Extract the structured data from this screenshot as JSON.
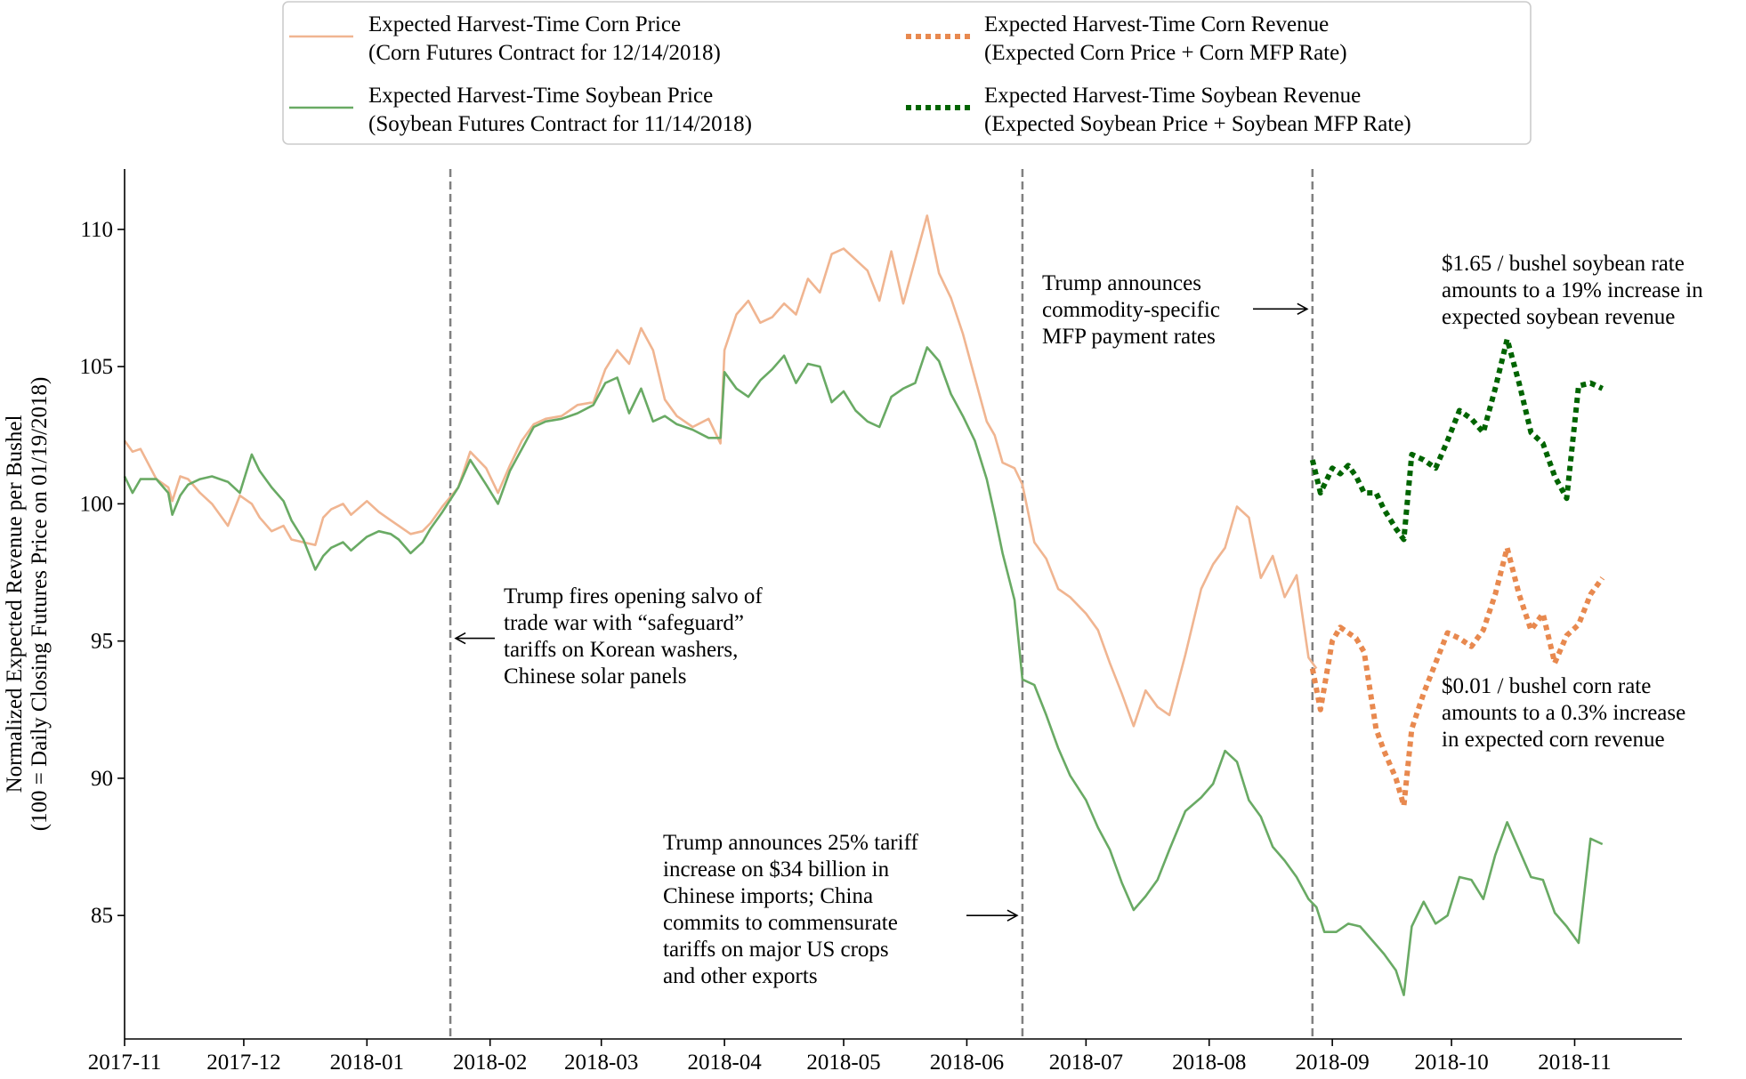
{
  "chart_data": {
    "type": "line",
    "ylabel": [
      "Normalized Expected Revenue per Bushel",
      "(100 = Daily Closing Futures Price on 01/19/2018)"
    ],
    "xlabel": "",
    "ylim": [
      80.5,
      112.2
    ],
    "xlim": [
      "2017-11-01",
      "2018-11-28"
    ],
    "grid": false,
    "legend_position": "top-center",
    "x_ticks": [
      "2017-11",
      "2017-12",
      "2018-01",
      "2018-02",
      "2018-03",
      "2018-04",
      "2018-05",
      "2018-06",
      "2018-07",
      "2018-08",
      "2018-09",
      "2018-10",
      "2018-11"
    ],
    "y_ticks": [
      85,
      90,
      95,
      100,
      105,
      110
    ],
    "legend": [
      [
        "Expected Harvest-Time Corn Price",
        "(Corn Futures Contract for 12/14/2018)"
      ],
      [
        "Expected Harvest-Time Soybean Price",
        "(Soybean Futures Contract for 11/14/2018)"
      ],
      [
        "Expected Harvest-Time Corn Revenue",
        "(Expected Corn Price + Corn MFP Rate)"
      ],
      [
        "Expected Harvest-Time Soybean Revenue",
        "(Expected Soybean Price + Soybean MFP Rate)"
      ]
    ],
    "vlines": [
      "2018-01-22",
      "2018-06-15",
      "2018-08-27"
    ],
    "annotations": [
      {
        "lines": [
          "Trump fires opening salvo of",
          "trade war with “safeguard”",
          "tariffs on Korean washers,",
          "Chinese solar panels"
        ],
        "arrow_to": "2018-01-22",
        "y": 95.1
      },
      {
        "lines": [
          "Trump announces 25% tariff",
          "increase on $34 billion in",
          "Chinese imports; China",
          "commits to commensurate",
          "tariffs on major US crops",
          "and other exports"
        ],
        "arrow_to": "2018-06-15",
        "y": 85.0
      },
      {
        "lines": [
          "Trump announces",
          "commodity-specific",
          "MFP payment rates"
        ],
        "arrow_to": "2018-08-27",
        "y": 107.1
      },
      {
        "lines": [
          "$1.65 / bushel soybean rate",
          "amounts to a 19% increase in",
          "expected soybean revenue"
        ]
      },
      {
        "lines": [
          "$0.01 / bushel corn rate",
          "amounts to a 0.3% increase",
          "in expected corn revenue"
        ]
      }
    ],
    "colors": {
      "corn_price": "#f0b591",
      "soy_price": "#69aa64",
      "corn_revenue": "#e8894f",
      "soy_revenue": "#006400",
      "vline": "#808080"
    },
    "series": [
      {
        "name": "Expected Harvest-Time Corn Price",
        "style": "solid",
        "color": "#f0b591",
        "x": [
          "2017-11-01",
          "2017-11-03",
          "2017-11-05",
          "2017-11-09",
          "2017-11-12",
          "2017-11-13",
          "2017-11-15",
          "2017-11-17",
          "2017-11-20",
          "2017-11-23",
          "2017-11-27",
          "2017-11-30",
          "2017-12-03",
          "2017-12-05",
          "2017-12-08",
          "2017-12-11",
          "2017-12-13",
          "2017-12-16",
          "2017-12-19",
          "2017-12-21",
          "2017-12-23",
          "2017-12-26",
          "2017-12-28",
          "2018-01-01",
          "2018-01-04",
          "2018-01-07",
          "2018-01-09",
          "2018-01-12",
          "2018-01-15",
          "2018-01-17",
          "2018-01-20",
          "2018-01-24",
          "2018-01-27",
          "2018-01-31",
          "2018-02-03",
          "2018-02-06",
          "2018-02-09",
          "2018-02-12",
          "2018-02-15",
          "2018-02-19",
          "2018-02-23",
          "2018-02-27",
          "2018-03-02",
          "2018-03-05",
          "2018-03-08",
          "2018-03-11",
          "2018-03-14",
          "2018-03-17",
          "2018-03-20",
          "2018-03-24",
          "2018-03-28",
          "2018-03-31",
          "2018-04-01",
          "2018-04-04",
          "2018-04-07",
          "2018-04-10",
          "2018-04-13",
          "2018-04-16",
          "2018-04-19",
          "2018-04-22",
          "2018-04-25",
          "2018-04-28",
          "2018-05-01",
          "2018-05-04",
          "2018-05-07",
          "2018-05-10",
          "2018-05-13",
          "2018-05-16",
          "2018-05-19",
          "2018-05-22",
          "2018-05-25",
          "2018-05-28",
          "2018-05-31",
          "2018-06-03",
          "2018-06-06",
          "2018-06-08",
          "2018-06-10",
          "2018-06-13",
          "2018-06-15",
          "2018-06-18",
          "2018-06-21",
          "2018-06-24",
          "2018-06-27",
          "2018-07-01",
          "2018-07-04",
          "2018-07-07",
          "2018-07-10",
          "2018-07-13",
          "2018-07-16",
          "2018-07-19",
          "2018-07-22",
          "2018-07-26",
          "2018-07-30",
          "2018-08-02",
          "2018-08-05",
          "2018-08-08",
          "2018-08-11",
          "2018-08-14",
          "2018-08-17",
          "2018-08-20",
          "2018-08-23",
          "2018-08-26",
          "2018-08-28"
        ],
        "y": [
          102.3,
          101.9,
          102.0,
          100.9,
          100.6,
          100.1,
          101.0,
          100.9,
          100.4,
          100.0,
          99.2,
          100.3,
          100.0,
          99.5,
          99.0,
          99.2,
          98.7,
          98.6,
          98.5,
          99.5,
          99.8,
          100.0,
          99.6,
          100.1,
          99.7,
          99.4,
          99.2,
          98.9,
          99.0,
          99.3,
          99.9,
          100.6,
          101.9,
          101.3,
          100.4,
          101.4,
          102.3,
          102.9,
          103.1,
          103.2,
          103.6,
          103.7,
          104.9,
          105.6,
          105.1,
          106.4,
          105.6,
          103.8,
          103.2,
          102.8,
          103.1,
          102.2,
          105.6,
          106.9,
          107.4,
          106.6,
          106.8,
          107.3,
          106.9,
          108.2,
          107.7,
          109.1,
          109.3,
          108.9,
          108.5,
          107.4,
          109.2,
          107.3,
          108.9,
          110.5,
          108.4,
          107.5,
          106.2,
          104.6,
          103.0,
          102.5,
          101.5,
          101.3,
          100.7,
          98.6,
          98.0,
          96.9,
          96.6,
          96.0,
          95.4,
          94.2,
          93.1,
          91.9,
          93.2,
          92.6,
          92.3,
          94.5,
          96.9,
          97.8,
          98.4,
          99.9,
          99.5,
          97.3,
          98.1,
          96.6,
          97.4,
          94.4,
          94.0
        ]
      },
      {
        "name": "Expected Harvest-Time Soybean Price",
        "style": "solid",
        "color": "#69aa64",
        "x": [
          "2017-11-01",
          "2017-11-03",
          "2017-11-05",
          "2017-11-09",
          "2017-11-12",
          "2017-11-13",
          "2017-11-15",
          "2017-11-17",
          "2017-11-20",
          "2017-11-23",
          "2017-11-27",
          "2017-11-30",
          "2017-12-03",
          "2017-12-05",
          "2017-12-08",
          "2017-12-11",
          "2017-12-13",
          "2017-12-16",
          "2017-12-19",
          "2017-12-21",
          "2017-12-23",
          "2017-12-26",
          "2017-12-28",
          "2018-01-01",
          "2018-01-04",
          "2018-01-07",
          "2018-01-09",
          "2018-01-12",
          "2018-01-15",
          "2018-01-17",
          "2018-01-20",
          "2018-01-24",
          "2018-01-27",
          "2018-01-31",
          "2018-02-03",
          "2018-02-06",
          "2018-02-09",
          "2018-02-12",
          "2018-02-15",
          "2018-02-19",
          "2018-02-23",
          "2018-02-27",
          "2018-03-02",
          "2018-03-05",
          "2018-03-08",
          "2018-03-11",
          "2018-03-14",
          "2018-03-17",
          "2018-03-20",
          "2018-03-24",
          "2018-03-28",
          "2018-03-31",
          "2018-04-01",
          "2018-04-04",
          "2018-04-07",
          "2018-04-10",
          "2018-04-13",
          "2018-04-16",
          "2018-04-19",
          "2018-04-22",
          "2018-04-25",
          "2018-04-28",
          "2018-05-01",
          "2018-05-04",
          "2018-05-07",
          "2018-05-10",
          "2018-05-13",
          "2018-05-16",
          "2018-05-19",
          "2018-05-22",
          "2018-05-25",
          "2018-05-28",
          "2018-05-31",
          "2018-06-03",
          "2018-06-06",
          "2018-06-08",
          "2018-06-10",
          "2018-06-13",
          "2018-06-15",
          "2018-06-18",
          "2018-06-21",
          "2018-06-24",
          "2018-06-27",
          "2018-07-01",
          "2018-07-04",
          "2018-07-07",
          "2018-07-10",
          "2018-07-13",
          "2018-07-16",
          "2018-07-19",
          "2018-07-22",
          "2018-07-26",
          "2018-07-30",
          "2018-08-02",
          "2018-08-05",
          "2018-08-08",
          "2018-08-11",
          "2018-08-14",
          "2018-08-17",
          "2018-08-20",
          "2018-08-23",
          "2018-08-26",
          "2018-08-28",
          "2018-08-30",
          "2018-09-02",
          "2018-09-05",
          "2018-09-08",
          "2018-09-11",
          "2018-09-14",
          "2018-09-17",
          "2018-09-19",
          "2018-09-21",
          "2018-09-24",
          "2018-09-27",
          "2018-09-30",
          "2018-10-03",
          "2018-10-06",
          "2018-10-09",
          "2018-10-12",
          "2018-10-15",
          "2018-10-18",
          "2018-10-21",
          "2018-10-24",
          "2018-10-27",
          "2018-10-30",
          "2018-11-02",
          "2018-11-05",
          "2018-11-08"
        ],
        "y": [
          101.0,
          100.4,
          100.9,
          100.9,
          100.4,
          99.6,
          100.3,
          100.7,
          100.9,
          101.0,
          100.8,
          100.4,
          101.8,
          101.2,
          100.6,
          100.1,
          99.4,
          98.7,
          97.6,
          98.1,
          98.4,
          98.6,
          98.3,
          98.8,
          99.0,
          98.9,
          98.7,
          98.2,
          98.6,
          99.1,
          99.7,
          100.6,
          101.6,
          100.7,
          100.0,
          101.2,
          102.0,
          102.8,
          103.0,
          103.1,
          103.3,
          103.6,
          104.4,
          104.6,
          103.3,
          104.2,
          103.0,
          103.2,
          102.9,
          102.7,
          102.4,
          102.4,
          104.8,
          104.2,
          103.9,
          104.5,
          104.9,
          105.4,
          104.4,
          105.1,
          105.0,
          103.7,
          104.1,
          103.4,
          103.0,
          102.8,
          103.9,
          104.2,
          104.4,
          105.7,
          105.2,
          104.0,
          103.2,
          102.3,
          100.9,
          99.6,
          98.2,
          96.5,
          93.6,
          93.4,
          92.3,
          91.1,
          90.1,
          89.2,
          88.2,
          87.4,
          86.2,
          85.2,
          85.7,
          86.3,
          87.4,
          88.8,
          89.3,
          89.8,
          91.0,
          90.6,
          89.2,
          88.6,
          87.5,
          87.0,
          86.4,
          85.6,
          85.3,
          84.4,
          84.4,
          84.7,
          84.6,
          84.1,
          83.6,
          83.0,
          82.1,
          84.6,
          85.5,
          84.7,
          85.0,
          86.4,
          86.3,
          85.6,
          87.2,
          88.4,
          87.4,
          86.4,
          86.3,
          85.1,
          84.6,
          84.0,
          87.8,
          87.6
        ]
      },
      {
        "name": "Expected Harvest-Time Corn Revenue",
        "style": "dotted",
        "color": "#e8894f",
        "x": [
          "2018-08-27",
          "2018-08-29",
          "2018-09-01",
          "2018-09-03",
          "2018-09-05",
          "2018-09-07",
          "2018-09-09",
          "2018-09-12",
          "2018-09-14",
          "2018-09-17",
          "2018-09-19",
          "2018-09-21",
          "2018-09-24",
          "2018-09-27",
          "2018-09-30",
          "2018-10-03",
          "2018-10-06",
          "2018-10-09",
          "2018-10-12",
          "2018-10-15",
          "2018-10-18",
          "2018-10-21",
          "2018-10-24",
          "2018-10-27",
          "2018-10-30",
          "2018-11-02",
          "2018-11-05",
          "2018-11-08"
        ],
        "y": [
          94.0,
          92.5,
          95.0,
          95.5,
          95.3,
          95.1,
          94.6,
          91.8,
          91.0,
          90.0,
          89.0,
          91.8,
          93.1,
          94.2,
          95.3,
          95.1,
          94.8,
          95.4,
          96.7,
          98.4,
          96.7,
          95.4,
          96.0,
          94.2,
          95.2,
          95.6,
          96.7,
          97.3
        ]
      },
      {
        "name": "Expected Harvest-Time Soybean Revenue",
        "style": "dotted",
        "color": "#006400",
        "x": [
          "2018-08-27",
          "2018-08-29",
          "2018-09-01",
          "2018-09-03",
          "2018-09-05",
          "2018-09-07",
          "2018-09-09",
          "2018-09-12",
          "2018-09-14",
          "2018-09-17",
          "2018-09-19",
          "2018-09-21",
          "2018-09-24",
          "2018-09-27",
          "2018-09-30",
          "2018-10-03",
          "2018-10-06",
          "2018-10-09",
          "2018-10-12",
          "2018-10-15",
          "2018-10-18",
          "2018-10-21",
          "2018-10-24",
          "2018-10-27",
          "2018-10-30",
          "2018-11-02",
          "2018-11-05",
          "2018-11-08"
        ],
        "y": [
          101.6,
          100.4,
          101.3,
          101.1,
          101.4,
          101.0,
          100.4,
          100.4,
          99.8,
          99.1,
          98.7,
          101.8,
          101.6,
          101.3,
          102.3,
          103.4,
          103.1,
          102.6,
          104.2,
          106.0,
          104.4,
          102.6,
          102.2,
          101.0,
          100.2,
          104.3,
          104.4,
          104.2
        ]
      }
    ]
  }
}
